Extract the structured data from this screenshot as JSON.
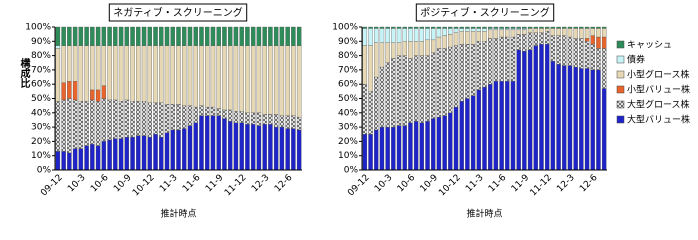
{
  "chart_data": [
    {
      "type": "stacked-bar",
      "title": "ネガティブ・スクリーニング",
      "y_label": "構成比",
      "x_label": "推計時点",
      "categories": [
        "09-12",
        null,
        null,
        null,
        "10-3",
        null,
        null,
        null,
        "10-6",
        null,
        null,
        null,
        "10-9",
        null,
        null,
        null,
        "10-12",
        null,
        null,
        null,
        "11-3",
        null,
        null,
        null,
        "11-6",
        null,
        null,
        null,
        "11-9",
        null,
        null,
        null,
        "11-12",
        null,
        null,
        null,
        "12-3",
        null,
        null,
        null,
        "12-6",
        null,
        null
      ],
      "ylim": [
        0,
        100
      ],
      "yticks": [
        {
          "value": 0,
          "label": "0%"
        },
        {
          "value": 10,
          "label": "10%"
        },
        {
          "value": 20,
          "label": "20%"
        },
        {
          "value": 30,
          "label": "30%"
        },
        {
          "value": 40,
          "label": "40%"
        },
        {
          "value": 50,
          "label": "50%"
        },
        {
          "value": 60,
          "label": "60%"
        },
        {
          "value": 70,
          "label": "70%"
        },
        {
          "value": 80,
          "label": "80%"
        },
        {
          "value": 90,
          "label": "90%"
        },
        {
          "value": 100,
          "label": "100%"
        }
      ],
      "series": [
        {
          "name": "大型バリュー株",
          "color": "#1f24c8",
          "values": [
            13,
            13,
            12,
            15,
            15,
            17,
            18,
            17,
            20,
            21,
            22,
            22,
            23,
            23,
            24,
            24,
            23,
            25,
            23,
            26,
            28,
            28,
            29,
            31,
            33,
            38,
            38,
            38,
            38,
            36,
            34,
            33,
            33,
            32,
            32,
            31,
            32,
            32,
            30,
            30,
            29,
            29,
            28
          ]
        },
        {
          "name": "大型グロース株",
          "color": "#808080",
          "pattern": "cross-hatch",
          "values": [
            35,
            36,
            38,
            34,
            33,
            31,
            31,
            31,
            30,
            28,
            27,
            26,
            26,
            25,
            24,
            24,
            24,
            22,
            24,
            20,
            18,
            18,
            16,
            14,
            11,
            7,
            6,
            6,
            5,
            6,
            8,
            8,
            8,
            8,
            8,
            9,
            7,
            7,
            9,
            8,
            9,
            9,
            9
          ]
        },
        {
          "name": "小型バリュー株",
          "color": "#e8642c",
          "values": [
            0,
            12,
            12,
            13,
            0,
            0,
            7,
            8,
            9,
            0,
            0,
            0,
            0,
            0,
            0,
            0,
            0,
            0,
            0,
            0,
            0,
            0,
            0,
            0,
            0,
            0,
            0,
            0,
            0,
            0,
            0,
            0,
            0,
            0,
            0,
            0,
            0,
            0,
            0,
            0,
            0,
            0,
            0
          ]
        },
        {
          "name": "小型グロース株",
          "color": "#e6d8b4",
          "values": [
            37,
            26,
            25,
            25,
            39,
            39,
            31,
            31,
            28,
            38,
            38,
            39,
            38,
            39,
            39,
            39,
            40,
            40,
            40,
            41,
            41,
            41,
            42,
            42,
            43,
            42,
            43,
            43,
            44,
            45,
            45,
            46,
            46,
            47,
            47,
            47,
            48,
            48,
            48,
            49,
            49,
            49,
            50
          ]
        },
        {
          "name": "債券",
          "color": "#c8f4f8",
          "values": [
            2,
            0,
            0,
            0,
            0,
            0,
            0,
            0,
            0,
            0,
            0,
            0,
            0,
            0,
            0,
            0,
            0,
            0,
            0,
            0,
            0,
            0,
            0,
            0,
            0,
            0,
            0,
            0,
            0,
            0,
            0,
            0,
            0,
            0,
            0,
            0,
            0,
            0,
            0,
            0,
            0,
            0,
            0
          ]
        },
        {
          "name": "キャッシュ",
          "color": "#2e8c5a",
          "values": [
            13,
            13,
            13,
            13,
            13,
            13,
            13,
            13,
            13,
            13,
            13,
            13,
            13,
            13,
            13,
            13,
            13,
            13,
            13,
            13,
            13,
            13,
            13,
            13,
            13,
            13,
            13,
            13,
            13,
            13,
            13,
            13,
            13,
            13,
            13,
            13,
            13,
            13,
            13,
            13,
            13,
            13,
            13
          ]
        }
      ]
    },
    {
      "type": "stacked-bar",
      "title": "ポジティブ・スクリーニング",
      "x_label": "推計時点",
      "categories": [
        "09-12",
        null,
        null,
        null,
        "10-3",
        null,
        null,
        null,
        "10-6",
        null,
        null,
        null,
        "10-9",
        null,
        null,
        null,
        "10-12",
        null,
        null,
        null,
        "11-3",
        null,
        null,
        null,
        "11-6",
        null,
        null,
        null,
        "11-9",
        null,
        null,
        null,
        "11-12",
        null,
        null,
        null,
        "12-3",
        null,
        null,
        null,
        "12-6",
        null,
        null
      ],
      "ylim": [
        0,
        100
      ],
      "yticks": [
        {
          "value": 0,
          "label": "0%"
        },
        {
          "value": 10,
          "label": "10%"
        },
        {
          "value": 20,
          "label": "20%"
        },
        {
          "value": 30,
          "label": "30%"
        },
        {
          "value": 40,
          "label": "40%"
        },
        {
          "value": 50,
          "label": "50%"
        },
        {
          "value": 60,
          "label": "60%"
        },
        {
          "value": 70,
          "label": "70%"
        },
        {
          "value": 80,
          "label": "80%"
        },
        {
          "value": 90,
          "label": "90%"
        },
        {
          "value": 100,
          "label": "100%"
        }
      ],
      "legend": "right",
      "series": [
        {
          "name": "大型バリュー株",
          "color": "#1f24c8",
          "values": [
            25,
            25,
            28,
            30,
            30,
            30,
            31,
            31,
            33,
            34,
            33,
            34,
            36,
            37,
            38,
            40,
            44,
            48,
            50,
            52,
            56,
            58,
            60,
            62,
            62,
            62,
            62,
            84,
            83,
            84,
            87,
            88,
            88,
            76,
            74,
            73,
            73,
            72,
            71,
            71,
            70,
            70,
            57
          ]
        },
        {
          "name": "大型グロース株",
          "color": "#808080",
          "pattern": "cross-hatch",
          "values": [
            35,
            30,
            37,
            42,
            45,
            48,
            49,
            49,
            45,
            46,
            47,
            46,
            46,
            48,
            47,
            46,
            43,
            40,
            38,
            36,
            34,
            32,
            32,
            30,
            31,
            31,
            31,
            11,
            12,
            12,
            9,
            8,
            9,
            18,
            20,
            21,
            20,
            20,
            21,
            19,
            18,
            15,
            28
          ]
        },
        {
          "name": "小型バリュー株",
          "color": "#e8642c",
          "values": [
            0,
            0,
            0,
            0,
            0,
            0,
            0,
            0,
            0,
            0,
            0,
            0,
            0,
            0,
            0,
            0,
            0,
            0,
            0,
            0,
            0,
            0,
            0,
            0,
            0,
            0,
            0,
            0,
            0,
            0,
            0,
            0,
            0,
            0,
            0,
            0,
            0,
            0,
            0,
            2,
            6,
            8,
            8
          ]
        },
        {
          "name": "小型グロース株",
          "color": "#e6d8b4",
          "values": [
            27,
            32,
            24,
            17,
            14,
            11,
            9,
            10,
            12,
            10,
            10,
            11,
            9,
            8,
            9,
            9,
            9,
            9,
            9,
            9,
            7,
            7,
            6,
            6,
            5,
            5,
            5,
            3,
            3,
            3,
            3,
            3,
            2,
            5,
            5,
            5,
            6,
            7,
            7,
            7,
            5,
            6,
            6
          ]
        },
        {
          "name": "債券",
          "color": "#c8f4f8",
          "values": [
            12,
            12,
            10,
            10,
            10,
            10,
            10,
            9,
            9,
            9,
            9,
            8,
            8,
            6,
            5,
            4,
            3,
            2,
            2,
            2,
            2,
            2,
            1,
            1,
            1,
            1,
            1,
            1,
            1,
            0,
            0,
            0,
            0,
            0,
            0,
            0,
            0,
            0,
            0,
            0,
            0,
            0,
            0
          ]
        },
        {
          "name": "キャッシュ",
          "color": "#2e8c5a",
          "values": [
            1,
            1,
            1,
            1,
            1,
            1,
            1,
            1,
            1,
            1,
            1,
            1,
            1,
            1,
            1,
            1,
            1,
            1,
            1,
            1,
            1,
            1,
            1,
            1,
            1,
            1,
            1,
            1,
            1,
            1,
            1,
            1,
            1,
            1,
            1,
            1,
            1,
            1,
            1,
            1,
            1,
            1,
            1
          ]
        }
      ]
    }
  ]
}
